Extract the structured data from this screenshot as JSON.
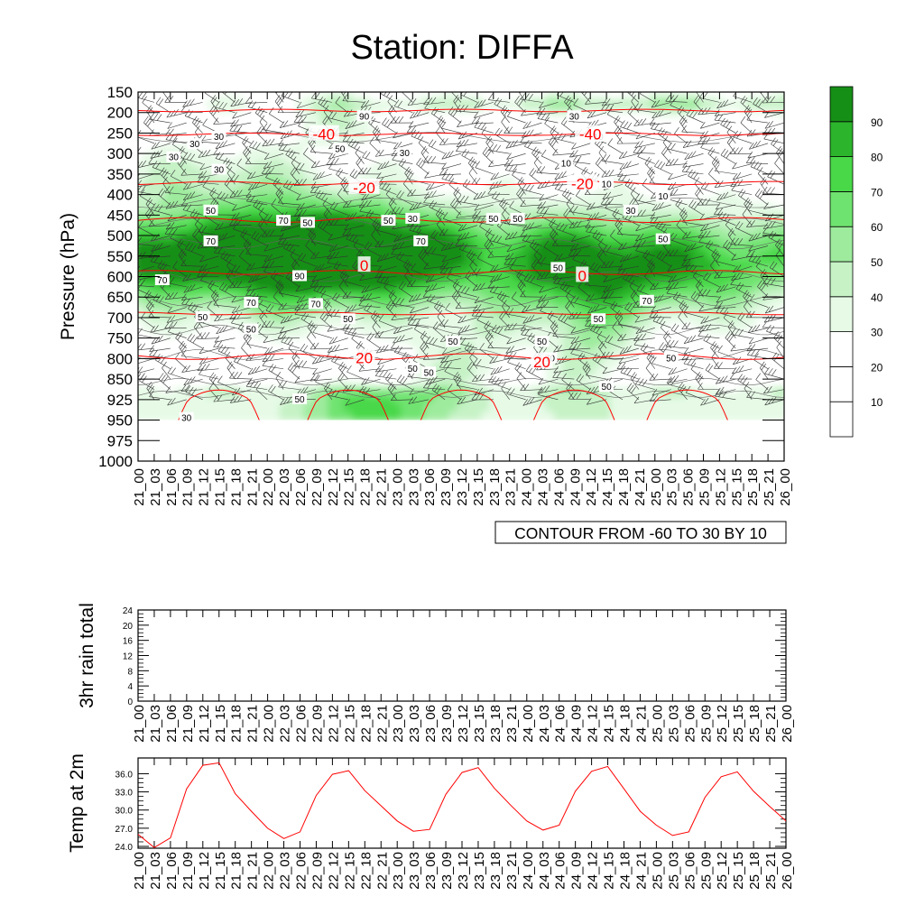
{
  "title": "Station: DIFFA",
  "contour_note": "CONTOUR FROM -60 TO 30 BY 10",
  "time_labels": [
    "21_00",
    "21_03",
    "21_06",
    "21_09",
    "21_12",
    "21_15",
    "21_18",
    "21_21",
    "22_00",
    "22_03",
    "22_06",
    "22_09",
    "22_12",
    "22_15",
    "22_18",
    "22_21",
    "23_00",
    "23_03",
    "23_06",
    "23_09",
    "23_12",
    "23_15",
    "23_18",
    "23_21",
    "24_00",
    "24_03",
    "24_06",
    "24_09",
    "24_12",
    "24_15",
    "24_18",
    "24_21",
    "25_00",
    "25_03",
    "25_06",
    "25_09",
    "25_12",
    "25_15",
    "25_18",
    "25_21",
    "26_00"
  ],
  "colors": {
    "temperature_contour": "#ff0000",
    "temp_2m_line": "#ff0000",
    "humidity_scale": [
      "#ffffff",
      "#ffffff",
      "#ffffff",
      "#e6fae6",
      "#c6f2c6",
      "#9eeb9e",
      "#6fe36f",
      "#48d848",
      "#2cb52c",
      "#168f16"
    ]
  },
  "chart_data": [
    {
      "type": "heatmap",
      "name": "cross-section",
      "ylabel": "Pressure (hPa)",
      "y_ticks": [
        150,
        200,
        250,
        300,
        350,
        400,
        450,
        500,
        550,
        600,
        650,
        700,
        750,
        800,
        850,
        925,
        950,
        975,
        1000
      ],
      "ylim": [
        150,
        1000
      ],
      "colorbar": {
        "levels": [
          10,
          20,
          30,
          40,
          50,
          60,
          70,
          80,
          90
        ],
        "placement": "right"
      },
      "humidity_labels": [
        {
          "t": 3.5,
          "p": 278,
          "v": "30"
        },
        {
          "t": 2.2,
          "p": 310,
          "v": "30"
        },
        {
          "t": 5,
          "p": 260,
          "v": "30"
        },
        {
          "t": 5,
          "p": 340,
          "v": "30"
        },
        {
          "t": 4.5,
          "p": 440,
          "v": "50"
        },
        {
          "t": 4.5,
          "p": 515,
          "v": "70"
        },
        {
          "t": 1.5,
          "p": 610,
          "v": "70"
        },
        {
          "t": 7,
          "p": 665,
          "v": "70"
        },
        {
          "t": 4,
          "p": 700,
          "v": "50"
        },
        {
          "t": 7,
          "p": 730,
          "v": "50"
        },
        {
          "t": 9,
          "p": 465,
          "v": "70"
        },
        {
          "t": 10.5,
          "p": 470,
          "v": "50"
        },
        {
          "t": 10,
          "p": 600,
          "v": "90"
        },
        {
          "t": 11,
          "p": 668,
          "v": "70"
        },
        {
          "t": 14,
          "p": 210,
          "v": "90"
        },
        {
          "t": 12.5,
          "p": 290,
          "v": "50"
        },
        {
          "t": 16.5,
          "p": 300,
          "v": "30"
        },
        {
          "t": 15.5,
          "p": 465,
          "v": "50"
        },
        {
          "t": 17,
          "p": 460,
          "v": "30"
        },
        {
          "t": 17.5,
          "p": 515,
          "v": "70"
        },
        {
          "t": 13,
          "p": 705,
          "v": "50"
        },
        {
          "t": 17,
          "p": 825,
          "v": "50"
        },
        {
          "t": 18,
          "p": 835,
          "v": "50"
        },
        {
          "t": 19.5,
          "p": 760,
          "v": "50"
        },
        {
          "t": 10,
          "p": 925,
          "v": "50"
        },
        {
          "t": 3,
          "p": 948,
          "v": "30"
        },
        {
          "t": 22,
          "p": 460,
          "v": "50"
        },
        {
          "t": 23.5,
          "p": 460,
          "v": "50"
        },
        {
          "t": 27,
          "p": 210,
          "v": "30"
        },
        {
          "t": 26.5,
          "p": 325,
          "v": "10"
        },
        {
          "t": 28.5,
          "p": 260,
          "v": "10"
        },
        {
          "t": 29,
          "p": 375,
          "v": "10"
        },
        {
          "t": 30.5,
          "p": 440,
          "v": "30"
        },
        {
          "t": 32.5,
          "p": 510,
          "v": "50"
        },
        {
          "t": 32.5,
          "p": 405,
          "v": "10"
        },
        {
          "t": 26,
          "p": 580,
          "v": "50"
        },
        {
          "t": 31.5,
          "p": 660,
          "v": "70"
        },
        {
          "t": 28.5,
          "p": 705,
          "v": "50"
        },
        {
          "t": 25,
          "p": 760,
          "v": "50"
        },
        {
          "t": 25.5,
          "p": 800,
          "v": "70"
        },
        {
          "t": 29,
          "p": 880,
          "v": "50"
        },
        {
          "t": 33,
          "p": 800,
          "v": "50"
        }
      ],
      "temp_labels": [
        {
          "t": 11.5,
          "p": 255,
          "v": "-40"
        },
        {
          "t": 28,
          "p": 255,
          "v": "-40"
        },
        {
          "t": 14,
          "p": 385,
          "v": "-20"
        },
        {
          "t": 27.5,
          "p": 375,
          "v": "-20"
        },
        {
          "t": 14,
          "p": 575,
          "v": "0"
        },
        {
          "t": 27.5,
          "p": 600,
          "v": "0"
        },
        {
          "t": 14,
          "p": 800,
          "v": "20"
        },
        {
          "t": 25,
          "p": 810,
          "v": "20"
        }
      ]
    },
    {
      "type": "line",
      "name": "3hr rain total",
      "ylabel": "3hr rain total",
      "y_ticks": [
        "0",
        "4",
        "8",
        "12",
        "16",
        "20",
        "24"
      ],
      "ylim": [
        0,
        24
      ],
      "series": [
        {
          "values": [
            0,
            0,
            0,
            0,
            0,
            0,
            0,
            0,
            0,
            0,
            0,
            0,
            0,
            0,
            0,
            0,
            0,
            0,
            0,
            0,
            0,
            0,
            0,
            0,
            0,
            0,
            0,
            0,
            0,
            0,
            0,
            0,
            0,
            0,
            0,
            0,
            0,
            0,
            0,
            0,
            0
          ]
        }
      ]
    },
    {
      "type": "line",
      "name": "Temp at 2m",
      "ylabel": "Temp at 2m",
      "y_ticks": [
        "24.0",
        "27.0",
        "30.0",
        "33.0",
        "36.0"
      ],
      "ylim": [
        23.7,
        38.6
      ],
      "series": [
        {
          "values": [
            26.0,
            23.8,
            25.4,
            33.5,
            37.4,
            37.8,
            32.7,
            29.8,
            27.0,
            25.3,
            26.4,
            32.4,
            35.9,
            36.5,
            33.2,
            30.7,
            28.2,
            26.5,
            26.8,
            32.6,
            36.2,
            37.0,
            33.6,
            30.8,
            28.2,
            26.7,
            27.5,
            33.1,
            36.4,
            37.2,
            33.5,
            29.8,
            27.5,
            25.8,
            26.4,
            32.1,
            35.5,
            36.3,
            33.1,
            30.6,
            28.2
          ]
        }
      ]
    }
  ]
}
